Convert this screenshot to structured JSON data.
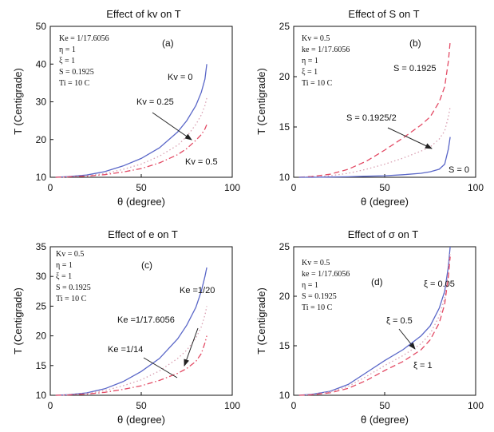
{
  "chart_data": [
    {
      "type": "line",
      "title": "Effect of kv on T",
      "xlabel": "θ (degree)",
      "ylabel": "T (Centigrade)",
      "xlim": [
        0,
        100
      ],
      "ylim": [
        10,
        50
      ],
      "xticks": [
        0,
        50,
        100
      ],
      "yticks": [
        10,
        20,
        30,
        40,
        50
      ],
      "grid": false,
      "panel_label": "(a)",
      "params": [
        "Ke = 1/17.6056",
        "η = 1",
        "ξ = 1",
        "S = 0.1925",
        "Ti = 10 C"
      ],
      "series": [
        {
          "name": "Kv = 0",
          "color": "#5a67c8",
          "dash": "solid",
          "x": [
            3,
            10,
            20,
            30,
            40,
            50,
            60,
            70,
            75,
            80,
            83,
            85,
            86
          ],
          "y": [
            10,
            10.2,
            10.6,
            11.5,
            13.0,
            15.0,
            17.8,
            22.0,
            25.0,
            29.0,
            32.5,
            36.0,
            40.0
          ]
        },
        {
          "name": "Kv = 0.25",
          "color": "#d9a0b2",
          "dash": "dotted",
          "x": [
            3,
            10,
            20,
            30,
            40,
            50,
            60,
            70,
            75,
            80,
            83,
            85,
            86
          ],
          "y": [
            10,
            10.1,
            10.4,
            11.0,
            12.1,
            13.5,
            15.6,
            18.5,
            20.8,
            24.0,
            26.5,
            29.0,
            31.0
          ]
        },
        {
          "name": "Kv = 0.5",
          "color": "#e34a64",
          "dash": "dashdot",
          "x": [
            3,
            10,
            20,
            30,
            40,
            50,
            60,
            70,
            75,
            80,
            83,
            85,
            86
          ],
          "y": [
            10,
            10.1,
            10.3,
            10.7,
            11.4,
            12.3,
            13.8,
            16.0,
            17.6,
            19.8,
            21.3,
            22.8,
            24.0
          ]
        }
      ],
      "annotations": [
        "Kv = 0",
        "Kv = 0.25",
        "Kv = 0.5"
      ]
    },
    {
      "type": "line",
      "title": "Effect of S on T",
      "xlabel": "θ (degree)",
      "ylabel": "T (Centigrade)",
      "xlim": [
        0,
        100
      ],
      "ylim": [
        10,
        25
      ],
      "xticks": [
        0,
        50,
        100
      ],
      "yticks": [
        10,
        15,
        20,
        25
      ],
      "grid": false,
      "panel_label": "(b)",
      "params": [
        "Kv = 0.5",
        "ke = 1/17.6056",
        "η = 1",
        "ξ = 1",
        "Ti = 10 C"
      ],
      "series": [
        {
          "name": "S = 0.1925",
          "color": "#e34a64",
          "dash": "dashed",
          "x": [
            3,
            10,
            20,
            30,
            40,
            50,
            60,
            70,
            75,
            80,
            83,
            85,
            86
          ],
          "y": [
            10,
            10.08,
            10.3,
            10.8,
            11.6,
            12.7,
            13.9,
            15.2,
            16.0,
            17.5,
            19.0,
            21.5,
            23.5
          ]
        },
        {
          "name": "S = 0.1925/2",
          "color": "#d9a0b2",
          "dash": "dotted",
          "x": [
            3,
            10,
            20,
            30,
            40,
            50,
            60,
            70,
            75,
            80,
            83,
            85,
            86
          ],
          "y": [
            10,
            10.04,
            10.15,
            10.4,
            10.8,
            11.3,
            11.9,
            12.6,
            13.0,
            13.8,
            14.6,
            16.0,
            17.0
          ]
        },
        {
          "name": "S = 0",
          "color": "#5a67c8",
          "dash": "solid",
          "x": [
            3,
            10,
            20,
            30,
            40,
            50,
            60,
            70,
            75,
            80,
            83,
            85,
            86
          ],
          "y": [
            10,
            10,
            10.02,
            10.05,
            10.1,
            10.15,
            10.25,
            10.4,
            10.55,
            10.8,
            11.3,
            12.8,
            14.0
          ]
        }
      ],
      "annotations": [
        "S = 0.1925",
        "S = 0.1925/2",
        "S = 0"
      ]
    },
    {
      "type": "line",
      "title": "Effect of e on T",
      "xlabel": "θ (degree)",
      "ylabel": "T (Centigrade)",
      "xlim": [
        0,
        100
      ],
      "ylim": [
        10,
        35
      ],
      "xticks": [
        0,
        50,
        100
      ],
      "yticks": [
        10,
        15,
        20,
        25,
        30,
        35
      ],
      "grid": false,
      "panel_label": "(c)",
      "params": [
        "Kv = 0.5",
        "η = 1",
        "ξ = 1",
        "S = 0.1925",
        "Ti = 10 C"
      ],
      "series": [
        {
          "name": "Ke = 1/20",
          "color": "#5a67c8",
          "dash": "solid",
          "x": [
            3,
            10,
            20,
            30,
            40,
            50,
            60,
            70,
            75,
            80,
            83,
            85,
            86
          ],
          "y": [
            10,
            10.1,
            10.4,
            11.1,
            12.3,
            14.0,
            16.2,
            19.5,
            21.8,
            24.8,
            27.5,
            30.0,
            31.5
          ]
        },
        {
          "name": "Ke =1/17.6056",
          "color": "#d9a0b2",
          "dash": "dotted",
          "x": [
            3,
            10,
            20,
            30,
            40,
            50,
            60,
            70,
            75,
            80,
            83,
            85,
            86
          ],
          "y": [
            10,
            10.08,
            10.3,
            10.8,
            11.6,
            12.6,
            14.1,
            16.2,
            17.6,
            19.6,
            21.5,
            23.5,
            25.0
          ]
        },
        {
          "name": "Ke =1/14",
          "color": "#e34a64",
          "dash": "dashdot",
          "x": [
            3,
            10,
            20,
            30,
            40,
            50,
            60,
            70,
            75,
            80,
            83,
            85,
            86
          ],
          "y": [
            10,
            10.05,
            10.2,
            10.5,
            11.0,
            11.6,
            12.5,
            13.7,
            14.5,
            15.7,
            17.0,
            18.8,
            20.0
          ]
        }
      ],
      "annotations": [
        "Ke =1/20",
        "Ke =1/17.6056",
        "Ke =1/14"
      ]
    },
    {
      "type": "line",
      "title": "Effect of σ on T",
      "xlabel": "θ (degree)",
      "ylabel": "T (Centigrade)",
      "xlim": [
        0,
        100
      ],
      "ylim": [
        10,
        25
      ],
      "xticks": [
        0,
        50,
        100
      ],
      "yticks": [
        10,
        15,
        20,
        25
      ],
      "grid": false,
      "panel_label": "(d)",
      "params": [
        "Kv = 0.5",
        "ke = 1/17.6056",
        "η = 1",
        "S = 0.1925",
        "Ti = 10 C"
      ],
      "series": [
        {
          "name": "ξ = 0.05",
          "color": "#5a67c8",
          "dash": "solid",
          "x": [
            3,
            10,
            20,
            30,
            40,
            50,
            60,
            70,
            75,
            80,
            83,
            85,
            86
          ],
          "y": [
            10,
            10.1,
            10.4,
            11.1,
            12.3,
            13.5,
            14.6,
            16.0,
            17.0,
            18.8,
            20.5,
            23.0,
            25.0
          ]
        },
        {
          "name": "ξ = 0.5",
          "color": "#d9a0b2",
          "dash": "dotted",
          "x": [
            3,
            10,
            20,
            30,
            40,
            50,
            60,
            70,
            75,
            80,
            83,
            85,
            86
          ],
          "y": [
            10,
            10.08,
            10.35,
            10.9,
            11.9,
            13.0,
            14.0,
            15.2,
            16.2,
            18.0,
            19.8,
            22.5,
            24.5
          ]
        },
        {
          "name": "ξ = 1",
          "color": "#e34a64",
          "dash": "dashed",
          "x": [
            3,
            10,
            20,
            30,
            40,
            50,
            60,
            70,
            75,
            80,
            83,
            85,
            86
          ],
          "y": [
            10,
            10.05,
            10.25,
            10.7,
            11.5,
            12.5,
            13.4,
            14.6,
            15.6,
            17.3,
            19.2,
            22.0,
            24.0
          ]
        }
      ],
      "annotations": [
        "ξ = 0.05",
        "ξ = 0.5",
        "ξ = 1"
      ]
    }
  ]
}
